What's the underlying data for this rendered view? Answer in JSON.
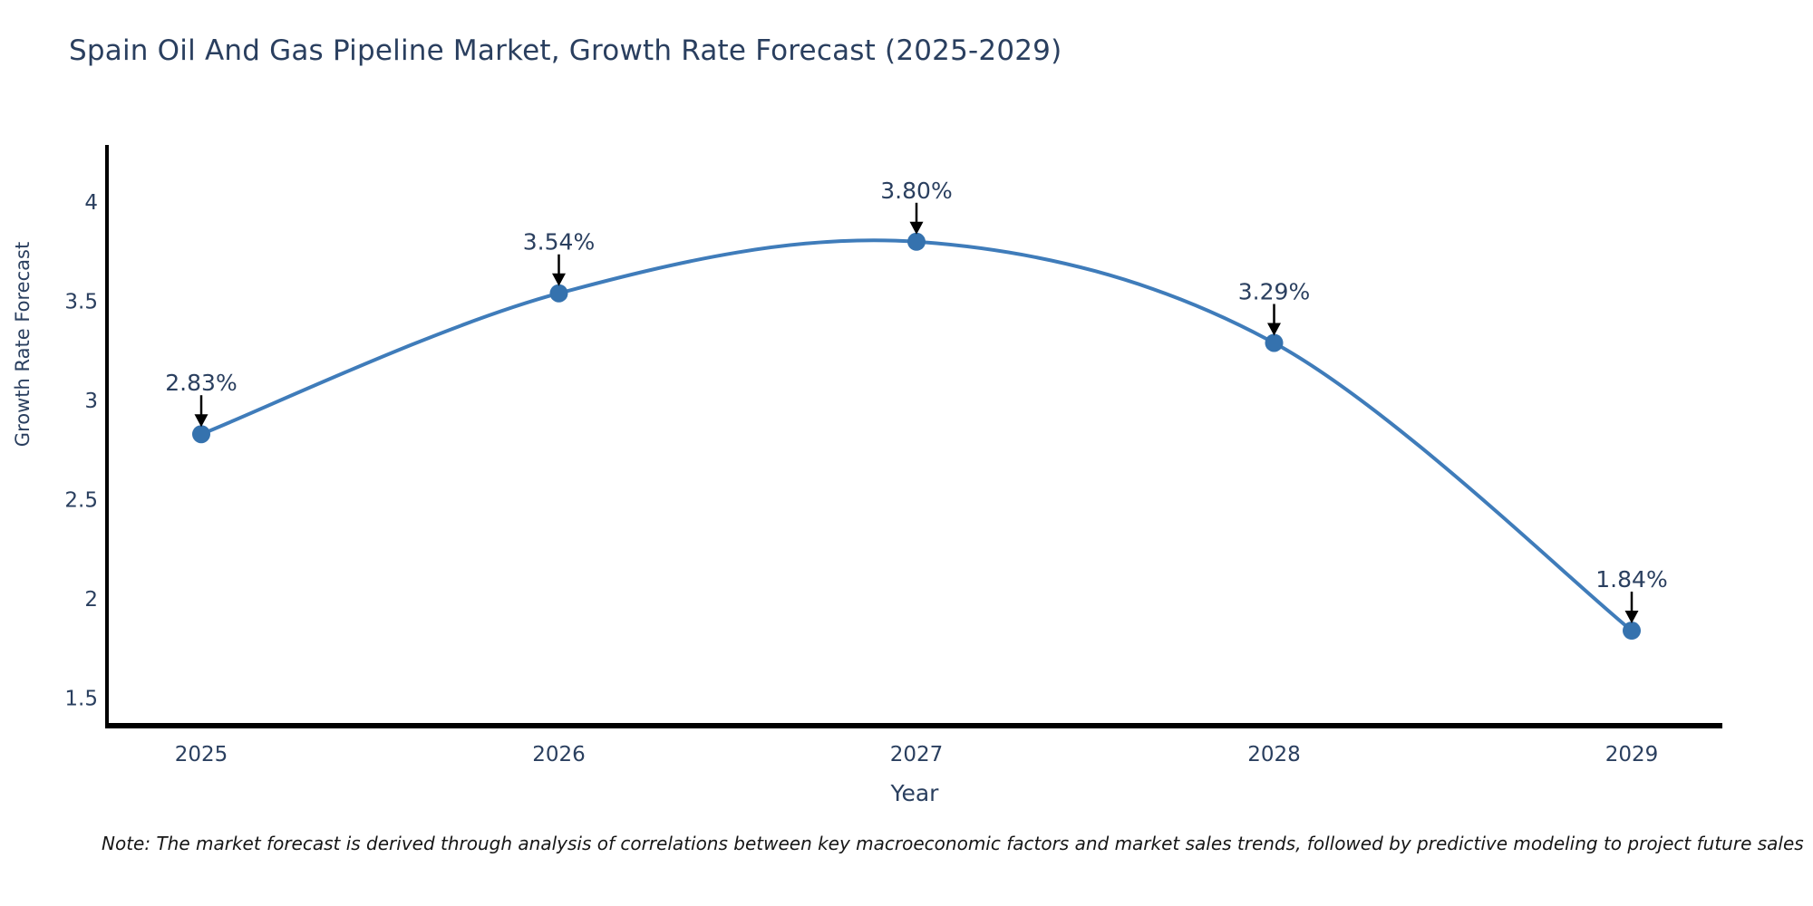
{
  "page": {
    "title": "Spain Oil And Gas Pipeline Market, Growth Rate Forecast (2025-2029)",
    "note": "Note: The market forecast is derived through analysis of correlations between key macroeconomic factors and market sales trends, followed by predictive modeling to project future sales"
  },
  "chart_data": {
    "type": "line",
    "line_shape": "spline",
    "title": "Spain Oil And Gas Pipeline Market, Growth Rate Forecast (2025-2029)",
    "xlabel": "Year",
    "ylabel": "Growth Rate Forecast",
    "categories": [
      "2025",
      "2026",
      "2027",
      "2028",
      "2029"
    ],
    "series": [
      {
        "name": "Growth Rate Forecast",
        "values": [
          2.83,
          3.54,
          3.8,
          3.29,
          1.84
        ]
      }
    ],
    "point_labels": [
      "2.83%",
      "3.54%",
      "3.80%",
      "3.29%",
      "1.84%"
    ],
    "y_ticks": [
      "4",
      "3.5",
      "3",
      "2.5",
      "2",
      "1.5"
    ],
    "ylim": [
      1.3,
      4.3
    ],
    "grid": false,
    "legend": "none",
    "marker": "circle",
    "annotations": "value-label-with-down-arrow-to-each-point",
    "colors": {
      "line": "#3f7cba",
      "marker": "#3572ae",
      "axis": "#000000",
      "arrow": "#000000",
      "text": "#2a3f5f",
      "note_text": "#161616",
      "background": "#ffffff"
    }
  }
}
